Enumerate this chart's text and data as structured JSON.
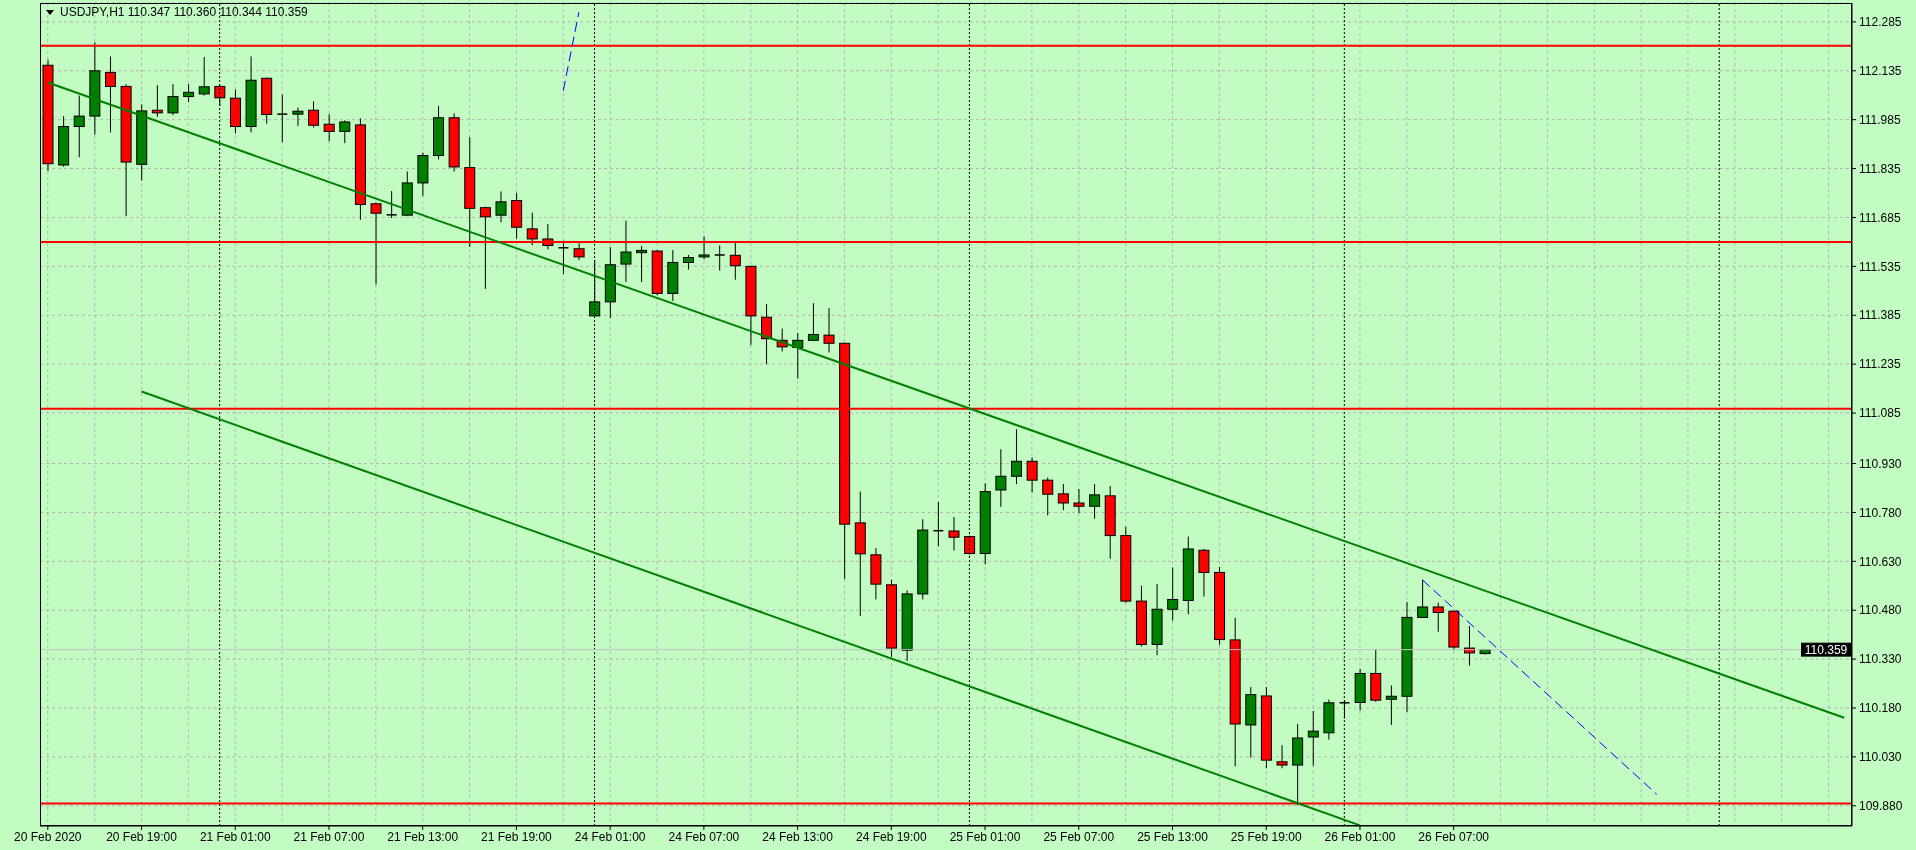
{
  "chart_data": {
    "type": "candlestick",
    "title": "USDJPY,H1 110.347 110.360 110.344 110.359",
    "categories": [
      "20 Feb 2020",
      null,
      null,
      null,
      null,
      null,
      "20 Feb 19:00",
      null,
      null,
      null,
      null,
      null,
      "21 Feb 01:00",
      null,
      null,
      null,
      null,
      null,
      "21 Feb 07:00",
      null,
      null,
      null,
      null,
      null,
      "21 Feb 13:00",
      null,
      null,
      null,
      null,
      null,
      "21 Feb 19:00",
      null,
      null,
      null,
      null,
      null,
      "24 Feb 01:00",
      null,
      null,
      null,
      null,
      null,
      "24 Feb 07:00",
      null,
      null,
      null,
      null,
      null,
      "24 Feb 13:00",
      null,
      null,
      null,
      null,
      null,
      "24 Feb 19:00",
      null,
      null,
      null,
      null,
      null,
      "25 Feb 01:00",
      null,
      null,
      null,
      null,
      null,
      "25 Feb 07:00",
      null,
      null,
      null,
      null,
      null,
      "25 Feb 13:00",
      null,
      null,
      null,
      null,
      null,
      "25 Feb 19:00",
      null,
      null,
      null,
      null,
      null,
      "26 Feb 01:00",
      null,
      null,
      null,
      null,
      null,
      "26 Feb 07:00",
      null,
      null,
      null,
      null,
      null,
      null,
      null,
      null,
      null,
      null,
      null,
      null,
      null,
      null,
      null,
      null,
      null,
      null,
      null,
      null,
      null,
      null,
      null,
      null,
      null
    ],
    "series": [
      {
        "type": "candlestick",
        "ohlc": [
          [
            112.152,
            112.169,
            111.828,
            111.85
          ],
          [
            111.846,
            111.996,
            111.841,
            111.964
          ],
          [
            111.964,
            112.059,
            111.87,
            111.996
          ],
          [
            111.996,
            112.222,
            111.939,
            112.135
          ],
          [
            112.13,
            112.179,
            111.946,
            112.087
          ],
          [
            112.087,
            112.094,
            111.69,
            111.855
          ],
          [
            111.848,
            112.032,
            111.798,
            112.012
          ],
          [
            112.014,
            112.091,
            111.994,
            112.006
          ],
          [
            112.006,
            112.094,
            111.999,
            112.056
          ],
          [
            112.056,
            112.094,
            112.039,
            112.069
          ],
          [
            112.064,
            112.177,
            112.059,
            112.086
          ],
          [
            112.087,
            112.091,
            112.027,
            112.052
          ],
          [
            112.051,
            112.077,
            111.943,
            111.964
          ],
          [
            111.964,
            112.179,
            111.946,
            112.106
          ],
          [
            112.112,
            112.114,
            111.973,
            112.001
          ],
          [
            112.002,
            112.062,
            111.916,
            112.002
          ],
          [
            112.002,
            112.022,
            111.966,
            112.011
          ],
          [
            112.014,
            112.041,
            111.961,
            111.968
          ],
          [
            111.971,
            112.002,
            111.919,
            111.949
          ],
          [
            111.949,
            111.983,
            111.913,
            111.978
          ],
          [
            111.969,
            111.989,
            111.678,
            111.725
          ],
          [
            111.727,
            111.73,
            111.479,
            111.698
          ],
          [
            111.693,
            111.766,
            111.683,
            111.693
          ],
          [
            111.692,
            111.826,
            111.69,
            111.791
          ],
          [
            111.791,
            111.884,
            111.751,
            111.875
          ],
          [
            111.875,
            112.027,
            111.863,
            111.991
          ],
          [
            111.991,
            112.004,
            111.826,
            111.84
          ],
          [
            111.838,
            111.931,
            111.595,
            111.713
          ],
          [
            111.715,
            111.718,
            111.466,
            111.687
          ],
          [
            111.692,
            111.765,
            111.67,
            111.733
          ],
          [
            111.737,
            111.761,
            111.62,
            111.655
          ],
          [
            111.65,
            111.7,
            111.6,
            111.619
          ],
          [
            111.619,
            111.665,
            111.587,
            111.599
          ],
          [
            111.592,
            111.614,
            111.512,
            111.592
          ],
          [
            111.589,
            111.61,
            111.554,
            111.564
          ],
          [
            111.383,
            111.554,
            111.381,
            111.426
          ],
          [
            111.426,
            111.594,
            111.376,
            111.54
          ],
          [
            111.542,
            111.675,
            111.487,
            111.579
          ],
          [
            111.577,
            111.597,
            111.487,
            111.584
          ],
          [
            111.582,
            111.585,
            111.446,
            111.452
          ],
          [
            111.452,
            111.585,
            111.429,
            111.547
          ],
          [
            111.547,
            111.57,
            111.525,
            111.562
          ],
          [
            111.564,
            111.627,
            111.557,
            111.57
          ],
          [
            111.57,
            111.599,
            111.522,
            111.57
          ],
          [
            111.569,
            111.607,
            111.494,
            111.537
          ],
          [
            111.535,
            111.537,
            111.294,
            111.383
          ],
          [
            111.379,
            111.419,
            111.235,
            111.313
          ],
          [
            111.308,
            111.344,
            111.274,
            111.288
          ],
          [
            111.286,
            111.331,
            111.191,
            111.308
          ],
          [
            111.308,
            111.422,
            111.306,
            111.326
          ],
          [
            111.324,
            111.407,
            111.271,
            111.299
          ],
          [
            111.299,
            111.301,
            110.576,
            110.744
          ],
          [
            110.748,
            110.844,
            110.462,
            110.653
          ],
          [
            110.65,
            110.671,
            110.513,
            110.56
          ],
          [
            110.558,
            110.573,
            110.337,
            110.364
          ],
          [
            110.357,
            110.541,
            110.324,
            110.53
          ],
          [
            110.53,
            110.759,
            110.513,
            110.726
          ],
          [
            110.724,
            110.812,
            110.676,
            110.724
          ],
          [
            110.723,
            110.766,
            110.663,
            110.704
          ],
          [
            110.706,
            110.709,
            110.65,
            110.654
          ],
          [
            110.654,
            110.869,
            110.621,
            110.844
          ],
          [
            110.849,
            110.974,
            110.797,
            110.891
          ],
          [
            110.891,
            111.035,
            110.867,
            110.937
          ],
          [
            110.937,
            110.949,
            110.841,
            110.879
          ],
          [
            110.879,
            110.887,
            110.771,
            110.836
          ],
          [
            110.837,
            110.867,
            110.787,
            110.809
          ],
          [
            110.809,
            110.852,
            110.778,
            110.799
          ],
          [
            110.799,
            110.867,
            110.761,
            110.834
          ],
          [
            110.831,
            110.861,
            110.638,
            110.709
          ],
          [
            110.709,
            110.736,
            110.503,
            110.508
          ],
          [
            110.508,
            110.555,
            110.369,
            110.375
          ],
          [
            110.375,
            110.561,
            110.342,
            110.483
          ],
          [
            110.483,
            110.611,
            110.448,
            110.513
          ],
          [
            110.51,
            110.706,
            110.468,
            110.668
          ],
          [
            110.664,
            110.668,
            110.522,
            110.596
          ],
          [
            110.596,
            110.613,
            110.374,
            110.39
          ],
          [
            110.389,
            110.457,
            110.001,
            110.131
          ],
          [
            110.128,
            110.244,
            110.028,
            110.221
          ],
          [
            110.217,
            110.244,
            109.995,
            110.02
          ],
          [
            110.015,
            110.066,
            109.995,
            110.005
          ],
          [
            110.005,
            110.131,
            109.882,
            110.088
          ],
          [
            110.091,
            110.171,
            110.003,
            110.109
          ],
          [
            110.104,
            110.206,
            110.083,
            110.196
          ],
          [
            110.196,
            110.204,
            110.148,
            110.196
          ],
          [
            110.197,
            110.3,
            110.172,
            110.286
          ],
          [
            110.286,
            110.36,
            110.199,
            110.204
          ],
          [
            110.207,
            110.249,
            110.128,
            110.216
          ],
          [
            110.216,
            110.505,
            110.168,
            110.458
          ],
          [
            110.458,
            110.573,
            110.458,
            110.49
          ],
          [
            110.49,
            110.503,
            110.414,
            110.473
          ],
          [
            110.477,
            110.478,
            110.357,
            110.367
          ],
          [
            110.364,
            110.432,
            110.31,
            110.349
          ],
          [
            110.347,
            110.36,
            110.344,
            110.359
          ],
          null,
          null,
          null,
          null,
          null,
          null,
          null,
          null,
          null,
          null,
          null,
          null,
          null,
          null,
          null,
          null,
          null,
          null,
          null,
          null,
          null,
          null,
          null
        ],
        "colors": [
          "#ff0000",
          "#008000",
          "#008000",
          "#008000",
          "#ff0000",
          "#ff0000",
          "#008000",
          "#ff0000",
          "#008000",
          "#008000",
          "#008000",
          "#ff0000",
          "#ff0000",
          "#008000",
          "#ff0000",
          "#000000",
          "#008000",
          "#ff0000",
          "#ff0000",
          "#008000",
          "#ff0000",
          "#ff0000",
          "#000000",
          "#008000",
          "#008000",
          "#008000",
          "#ff0000",
          "#ff0000",
          "#ff0000",
          "#008000",
          "#ff0000",
          "#ff0000",
          "#ff0000",
          "#000000",
          "#ff0000",
          "#008000",
          "#008000",
          "#008000",
          "#008000",
          "#ff0000",
          "#008000",
          "#008000",
          "#008000",
          "#000000",
          "#ff0000",
          "#ff0000",
          "#ff0000",
          "#ff0000",
          "#008000",
          "#008000",
          "#ff0000",
          "#ff0000",
          "#ff0000",
          "#ff0000",
          "#ff0000",
          "#008000",
          "#008000",
          "#000000",
          "#ff0000",
          "#ff0000",
          "#008000",
          "#008000",
          "#008000",
          "#ff0000",
          "#ff0000",
          "#ff0000",
          "#ff0000",
          "#008000",
          "#ff0000",
          "#ff0000",
          "#ff0000",
          "#008000",
          "#008000",
          "#008000",
          "#ff0000",
          "#ff0000",
          "#ff0000",
          "#008000",
          "#ff0000",
          "#ff0000",
          "#008000",
          "#008000",
          "#008000",
          "#000000",
          "#008000",
          "#ff0000",
          "#008000",
          "#008000",
          "#008000",
          "#ff0000",
          "#ff0000",
          "#ff0000",
          "#008000",
          null,
          null,
          null,
          null,
          null,
          null,
          null,
          null,
          null,
          null,
          null,
          null,
          null,
          null,
          null,
          null,
          null,
          null,
          null,
          null,
          null,
          null,
          null
        ]
      },
      {
        "type": "line",
        "color": "#008000",
        "line_style": "solid",
        "values": [
          112.099,
          null,
          null,
          null,
          null,
          null,
          null,
          null,
          null,
          null,
          null,
          null,
          null,
          null,
          null,
          null,
          null,
          null,
          null,
          null,
          null,
          null,
          null,
          null,
          null,
          null,
          null,
          null,
          null,
          null,
          null,
          null,
          null,
          null,
          null,
          null,
          null,
          null,
          null,
          null,
          null,
          null,
          null,
          null,
          null,
          null,
          null,
          null,
          null,
          null,
          null,
          null,
          null,
          null,
          null,
          null,
          null,
          null,
          null,
          null,
          null,
          null,
          null,
          null,
          null,
          null,
          null,
          null,
          null,
          null,
          null,
          null,
          null,
          null,
          null,
          null,
          null,
          null,
          null,
          null,
          null,
          null,
          null,
          null,
          null,
          null,
          null,
          null,
          null,
          null,
          null,
          null,
          null,
          null,
          null,
          null,
          null,
          null,
          null,
          null,
          null,
          null,
          null,
          null,
          null,
          null,
          null,
          null,
          null,
          null,
          null,
          null,
          null,
          null,
          null,
          110.15
        ]
      },
      {
        "type": "line",
        "color": "#008000",
        "line_style": "solid",
        "values": [
          null,
          null,
          null,
          null,
          null,
          null,
          111.151,
          null,
          null,
          null,
          null,
          null,
          null,
          null,
          null,
          null,
          null,
          null,
          null,
          null,
          null,
          null,
          null,
          null,
          null,
          null,
          null,
          null,
          null,
          null,
          null,
          null,
          null,
          null,
          null,
          null,
          null,
          null,
          null,
          null,
          null,
          null,
          null,
          null,
          null,
          null,
          null,
          null,
          null,
          null,
          null,
          null,
          null,
          null,
          null,
          null,
          null,
          null,
          null,
          null,
          null,
          null,
          null,
          null,
          null,
          null,
          null,
          null,
          null,
          null,
          null,
          null,
          null,
          null,
          null,
          null,
          null,
          null,
          null,
          null,
          null,
          null,
          null,
          null,
          109.82,
          null,
          null,
          null,
          null,
          null,
          null,
          null,
          null,
          null,
          null,
          null,
          null,
          null,
          null,
          null,
          null,
          null,
          null,
          null,
          null,
          null,
          null,
          null,
          null,
          null,
          null,
          null,
          null,
          null,
          null,
          null
        ]
      },
      {
        "type": "line",
        "color": "#0000ff",
        "line_style": "dashed",
        "values": [
          null,
          null,
          null,
          null,
          null,
          null,
          null,
          null,
          null,
          null,
          null,
          null,
          null,
          null,
          null,
          null,
          null,
          null,
          null,
          null,
          null,
          null,
          null,
          null,
          null,
          null,
          null,
          null,
          null,
          null,
          null,
          null,
          null,
          112.074,
          112.315,
          null,
          null,
          null,
          null,
          null,
          null,
          null,
          null,
          null,
          null,
          null,
          null,
          null,
          null,
          null,
          null,
          null,
          null,
          null,
          null,
          null,
          null,
          null,
          null,
          null,
          null,
          null,
          null,
          null,
          null,
          null,
          null,
          null,
          null,
          null,
          null,
          null,
          null,
          null,
          null,
          null,
          null,
          null,
          null,
          null,
          null,
          null,
          null,
          null,
          null,
          null,
          null,
          null,
          null,
          null,
          null,
          null,
          null,
          null,
          null,
          null,
          null,
          null,
          null,
          null,
          null,
          null,
          null,
          null,
          null,
          null,
          null,
          null,
          null,
          null,
          null,
          null,
          null,
          null,
          null,
          null
        ]
      },
      {
        "type": "line",
        "color": "#0000ff",
        "line_style": "dashed",
        "values": [
          null,
          null,
          null,
          null,
          null,
          null,
          null,
          null,
          null,
          null,
          null,
          null,
          null,
          null,
          null,
          null,
          null,
          null,
          null,
          null,
          null,
          null,
          null,
          null,
          null,
          null,
          null,
          null,
          null,
          null,
          null,
          null,
          null,
          null,
          null,
          null,
          null,
          null,
          null,
          null,
          null,
          null,
          null,
          null,
          null,
          null,
          null,
          null,
          null,
          null,
          null,
          null,
          null,
          null,
          null,
          null,
          null,
          null,
          null,
          null,
          null,
          null,
          null,
          null,
          null,
          null,
          null,
          null,
          null,
          null,
          null,
          null,
          null,
          null,
          null,
          null,
          null,
          null,
          null,
          null,
          null,
          null,
          null,
          null,
          null,
          null,
          null,
          null,
          110.573,
          null,
          null,
          null,
          null,
          null,
          null,
          null,
          null,
          null,
          null,
          null,
          null,
          null,
          null,
          109.915,
          null,
          null,
          null,
          null,
          null,
          null,
          null,
          null,
          null,
          null,
          null,
          null
        ]
      }
    ],
    "ylim": [
      109.818,
      112.343
    ],
    "yticks": [
      {
        "value": 112.285,
        "label": "112.285"
      },
      {
        "value": 112.135,
        "label": "112.135"
      },
      {
        "value": 111.985,
        "label": "111.985"
      },
      {
        "value": 111.835,
        "label": "111.835"
      },
      {
        "value": 111.685,
        "label": "111.685"
      },
      {
        "value": 111.535,
        "label": "111.535"
      },
      {
        "value": 111.385,
        "label": "111.385"
      },
      {
        "value": 111.235,
        "label": "111.235"
      },
      {
        "value": 111.085,
        "label": "111.085"
      },
      {
        "value": 110.93,
        "label": "110.930"
      },
      {
        "value": 110.78,
        "label": "110.780"
      },
      {
        "value": 110.63,
        "label": "110.630"
      },
      {
        "value": 110.48,
        "label": "110.480"
      },
      {
        "value": 110.33,
        "label": "110.330"
      },
      {
        "value": 110.18,
        "label": "110.180"
      },
      {
        "value": 110.03,
        "label": "110.030"
      },
      {
        "value": 109.88,
        "label": "109.880"
      }
    ],
    "grid": true,
    "ref_lines": [
      {
        "axis": "y",
        "value": 112.212,
        "color": "#ff0000"
      },
      {
        "axis": "y",
        "value": 111.61,
        "color": "#ff0000"
      },
      {
        "axis": "y",
        "value": 111.098,
        "color": "#ff0000"
      },
      {
        "axis": "y",
        "value": 109.887,
        "color": "#ff0000"
      },
      {
        "axis": "y",
        "value": 110.359,
        "label": "110.359",
        "color": "#c0c0c0"
      }
    ]
  }
}
